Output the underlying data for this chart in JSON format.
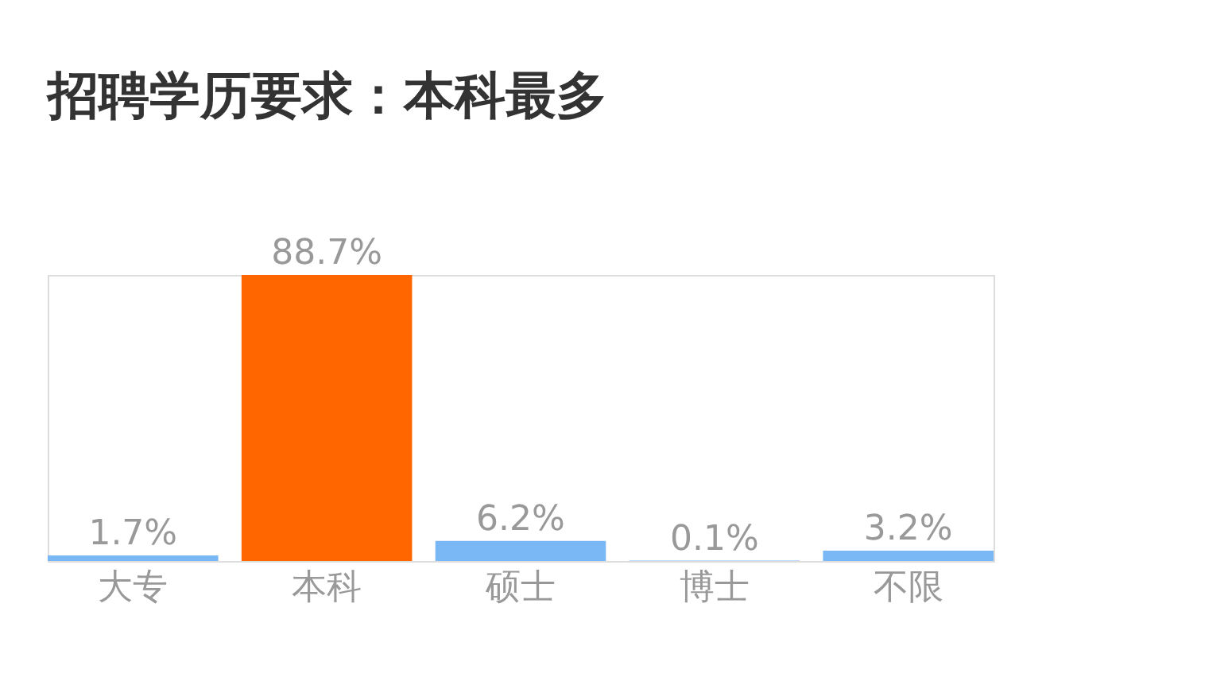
{
  "chart_data": {
    "type": "bar",
    "title": "招聘学历要求：本科最多",
    "categories": [
      "大专",
      "本科",
      "硕士",
      "博士",
      "不限"
    ],
    "values": [
      1.7,
      88.7,
      6.2,
      0.1,
      3.2
    ],
    "value_labels": [
      "1.7%",
      "88.7%",
      "6.2%",
      "0.1%",
      "3.2%"
    ],
    "colors": [
      "#7ab8f5",
      "#ff6600",
      "#7ab8f5",
      "#7ab8f5",
      "#7ab8f5"
    ]
  }
}
